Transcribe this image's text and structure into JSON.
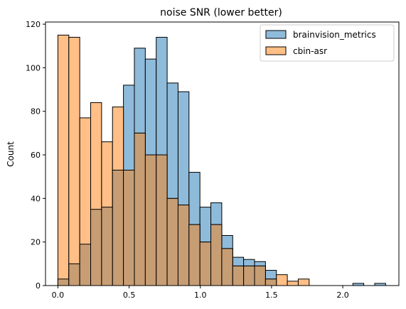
{
  "chart_data": {
    "type": "bar",
    "title": "noise SNR (lower better)",
    "xlabel": "",
    "ylabel": "Count",
    "xlim": [
      -0.087,
      2.394
    ],
    "ylim": [
      0,
      121
    ],
    "x_ticks": [
      0.0,
      0.5,
      1.0,
      1.5,
      2.0
    ],
    "x_tick_labels": [
      "0.0",
      "0.5",
      "1.0",
      "1.5",
      "2.0"
    ],
    "y_ticks": [
      0,
      20,
      40,
      60,
      80,
      100,
      120
    ],
    "y_tick_labels": [
      "0",
      "20",
      "40",
      "60",
      "80",
      "100",
      "120"
    ],
    "bin_edges": [
      0.0,
      0.0767,
      0.1534,
      0.2301,
      0.3068,
      0.3835,
      0.4602,
      0.5369,
      0.6136,
      0.6903,
      0.767,
      0.8437,
      0.9204,
      0.9971,
      1.0738,
      1.1505,
      1.2272,
      1.3039,
      1.3806,
      1.4573,
      1.534,
      1.6107,
      1.6874,
      1.7641,
      1.8408,
      1.9175,
      1.9942,
      2.0709,
      2.1476,
      2.2243,
      2.301
    ],
    "grid": false,
    "legend_position": "top-right",
    "series": [
      {
        "name": "brainvision_metrics",
        "color": "#1f77b4",
        "values": [
          3,
          10,
          19,
          35,
          36,
          53,
          92,
          109,
          104,
          114,
          93,
          89,
          52,
          36,
          38,
          23,
          13,
          12,
          11,
          7,
          0,
          0,
          0,
          0,
          0,
          0,
          0,
          1,
          0,
          1
        ]
      },
      {
        "name": "cbin-asr",
        "color": "#ff7f0e",
        "values": [
          115,
          114,
          77,
          84,
          66,
          82,
          53,
          70,
          60,
          60,
          40,
          37,
          28,
          20,
          28,
          17,
          9,
          9,
          9,
          3,
          5,
          2,
          3,
          0,
          0,
          0,
          0,
          0,
          0,
          0
        ]
      }
    ]
  }
}
